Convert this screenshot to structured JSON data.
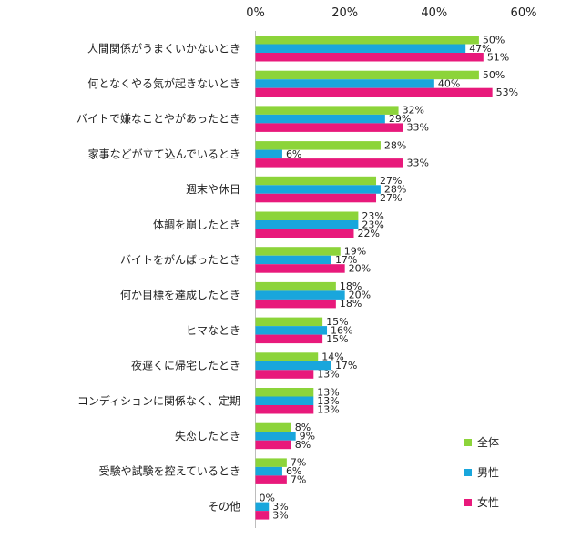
{
  "chart_data": {
    "type": "bar",
    "orientation": "horizontal",
    "title": "",
    "xlabel": "",
    "ylabel": "",
    "xlim": [
      0,
      60
    ],
    "ticks": [
      0,
      20,
      40,
      60
    ],
    "tick_labels": [
      "0%",
      "20%",
      "40%",
      "60%"
    ],
    "value_suffix": "%",
    "grid": false,
    "legend_position": "bottom-right",
    "categories": [
      "人間関係がうまくいかないとき",
      "何となくやる気が起きないとき",
      "バイトで嫌なことやがあったとき",
      "家事などが立て込んでいるとき",
      "週末や休日",
      "体調を崩したとき",
      "バイトをがんばったとき",
      "何か目標を達成したとき",
      "ヒマなとき",
      "夜遅くに帰宅したとき",
      "コンディションに関係なく、定期",
      "失恋したとき",
      "受験や試験を控えているとき",
      "その他"
    ],
    "series": [
      {
        "name": "全体",
        "color": "#8cd43a",
        "values": [
          50,
          50,
          32,
          28,
          27,
          23,
          19,
          18,
          15,
          14,
          13,
          8,
          7,
          0
        ]
      },
      {
        "name": "男性",
        "color": "#19a6dc",
        "values": [
          47,
          40,
          29,
          6,
          28,
          23,
          17,
          20,
          16,
          17,
          13,
          9,
          6,
          3
        ]
      },
      {
        "name": "女性",
        "color": "#e8197b",
        "values": [
          51,
          53,
          33,
          33,
          27,
          22,
          20,
          18,
          15,
          13,
          13,
          8,
          7,
          3
        ]
      }
    ]
  }
}
